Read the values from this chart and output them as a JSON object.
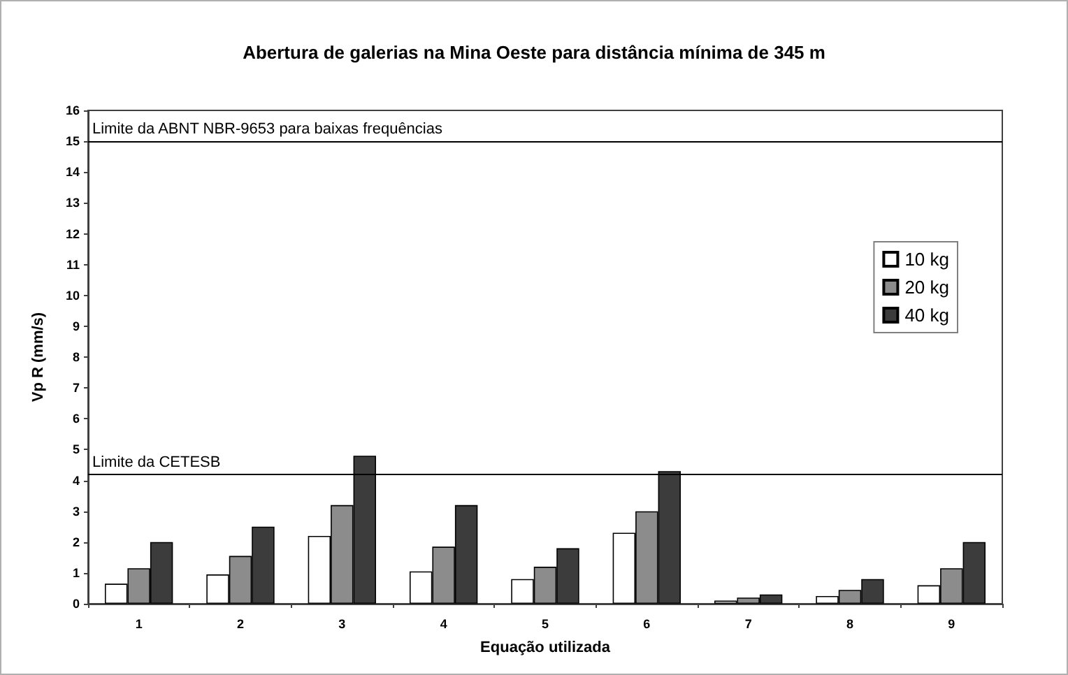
{
  "chart_data": {
    "type": "bar",
    "title": "Abertura de galerias na Mina Oeste para distância mínima de 345 m",
    "xlabel": "Equação utilizada",
    "ylabel": "Vp R (mm/s)",
    "categories": [
      "1",
      "2",
      "3",
      "4",
      "5",
      "6",
      "7",
      "8",
      "9"
    ],
    "series": [
      {
        "name": "10 kg",
        "color": "#ffffff",
        "values": [
          0.65,
          0.95,
          2.2,
          1.05,
          0.8,
          2.3,
          0.1,
          0.25,
          0.6
        ]
      },
      {
        "name": "20 kg",
        "color": "#8c8c8c",
        "values": [
          1.15,
          1.55,
          3.2,
          1.85,
          1.2,
          3.0,
          0.2,
          0.45,
          1.15
        ]
      },
      {
        "name": "40 kg",
        "color": "#3c3c3c",
        "values": [
          2.0,
          2.5,
          4.8,
          3.2,
          1.8,
          4.3,
          0.3,
          0.8,
          2.0
        ]
      }
    ],
    "ylim": [
      0,
      16
    ],
    "yticks": [
      0,
      1,
      2,
      3,
      4,
      5,
      6,
      7,
      8,
      9,
      10,
      11,
      12,
      13,
      14,
      15,
      16
    ],
    "ref_lines": [
      {
        "axis": "y",
        "value": 15,
        "label": "Limite da ABNT NBR-9653 para baixas frequências"
      },
      {
        "axis": "y",
        "value": 4.2,
        "label": "Limite da CETESB"
      }
    ],
    "grid": false,
    "legend": "right"
  }
}
